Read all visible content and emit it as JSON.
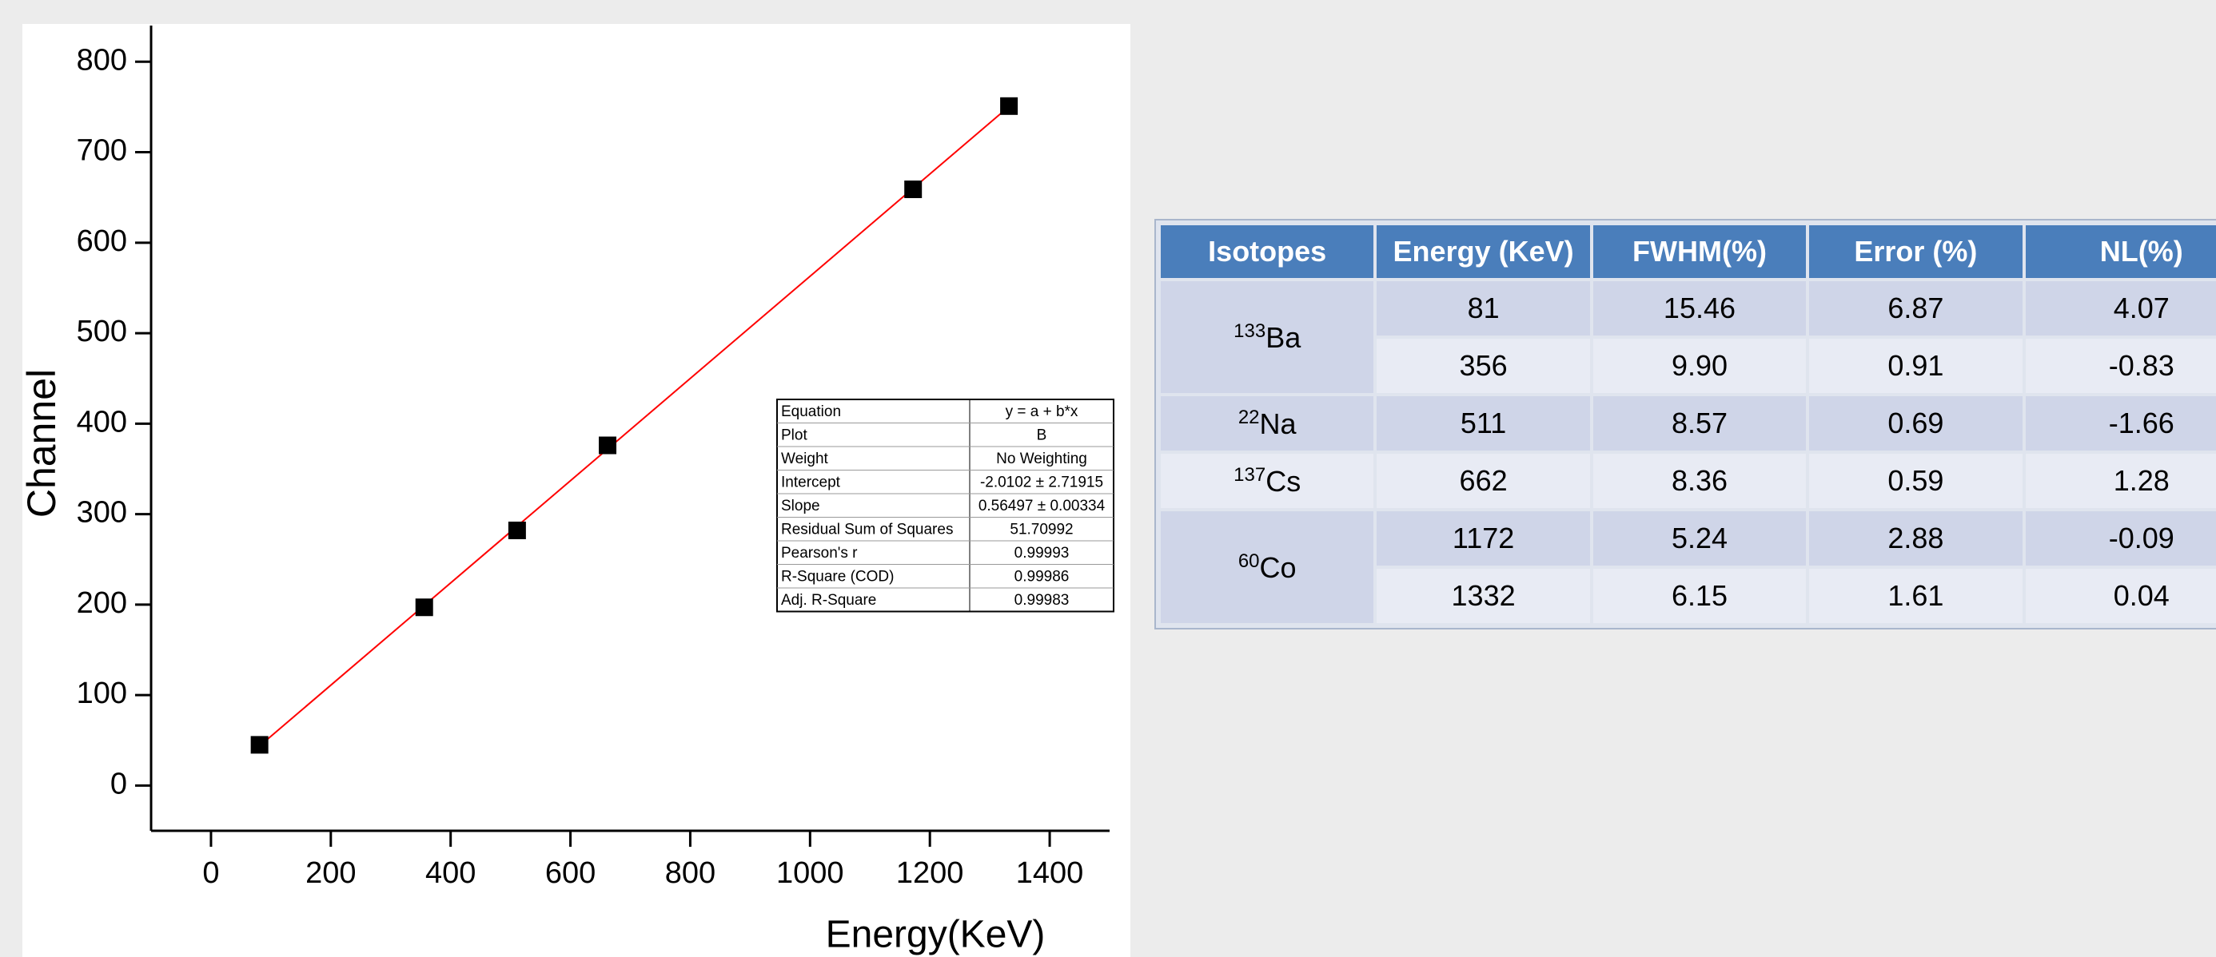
{
  "chart_data": {
    "type": "scatter",
    "xlabel": "Energy(KeV)",
    "ylabel": "Channel",
    "x": [
      81,
      356,
      511,
      662,
      1172,
      1332
    ],
    "values": [
      45,
      197,
      282,
      376,
      659,
      751
    ],
    "color": "#000000",
    "fit_line": {
      "color": "#ff0000",
      "x": [
        81,
        1332
      ],
      "values": [
        43.7,
        750.5
      ]
    },
    "xlim": [
      -100,
      1500
    ],
    "xticks": [
      0,
      200,
      400,
      600,
      800,
      1000,
      1200,
      1400
    ],
    "ylim": [
      -50,
      840
    ],
    "yticks": [
      0,
      100,
      200,
      300,
      400,
      500,
      600,
      700,
      800
    ],
    "fit_stats": [
      [
        "Equation",
        "y = a + b*x"
      ],
      [
        "Plot",
        "B"
      ],
      [
        "Weight",
        "No Weighting"
      ],
      [
        "Intercept",
        "-2.0102 ± 2.71915"
      ],
      [
        "Slope",
        "0.56497 ± 0.00334"
      ],
      [
        "Residual Sum of Squares",
        "51.70992"
      ],
      [
        "Pearson's r",
        "0.99993"
      ],
      [
        "R-Square (COD)",
        "0.99986"
      ],
      [
        "Adj. R-Square",
        "0.99983"
      ]
    ]
  },
  "table": {
    "header": [
      "Isotopes",
      "Energy (KeV)",
      "FWHM(%)",
      "Error (%)",
      "NL(%)"
    ],
    "groups": [
      {
        "mass": "133",
        "symbol": "Ba",
        "rows": [
          [
            "81",
            "15.46",
            "6.87",
            "4.07"
          ],
          [
            "356",
            "9.90",
            "0.91",
            "-0.83"
          ]
        ]
      },
      {
        "mass": "22",
        "symbol": "Na",
        "rows": [
          [
            "511",
            "8.57",
            "0.69",
            "-1.66"
          ]
        ]
      },
      {
        "mass": "137",
        "symbol": "Cs",
        "rows": [
          [
            "662",
            "8.36",
            "0.59",
            "1.28"
          ]
        ]
      },
      {
        "mass": "60",
        "symbol": "Co",
        "rows": [
          [
            "1172",
            "5.24",
            "2.88",
            "-0.09"
          ],
          [
            "1332",
            "6.15",
            "1.61",
            "0.04"
          ]
        ]
      }
    ]
  }
}
